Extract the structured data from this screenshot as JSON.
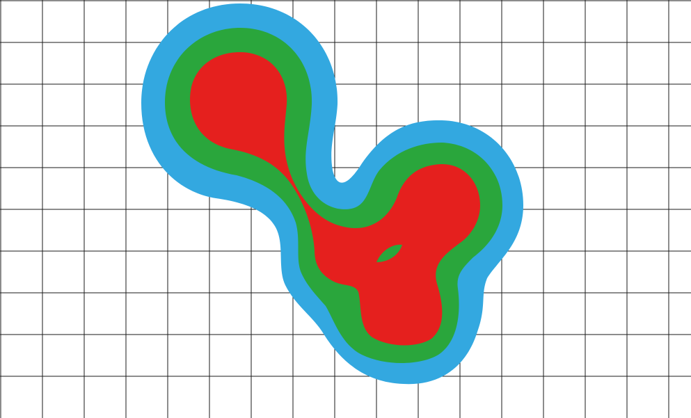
{
  "figure": {
    "kind": "nested contour blobs over a square grid",
    "background_color": "#ffffff",
    "grid": {
      "visible": true,
      "color": "#1a1a1a",
      "columns": 17,
      "rows": 10
    },
    "layers": [
      {
        "name": "outer-contour",
        "color": "#33a8e0"
      },
      {
        "name": "middle-contour",
        "color": "#2aa63c"
      },
      {
        "name": "inner-contour",
        "color": "#e5201e"
      }
    ],
    "hole": {
      "name": "inner-hole",
      "color": "#2aa63c"
    }
  }
}
